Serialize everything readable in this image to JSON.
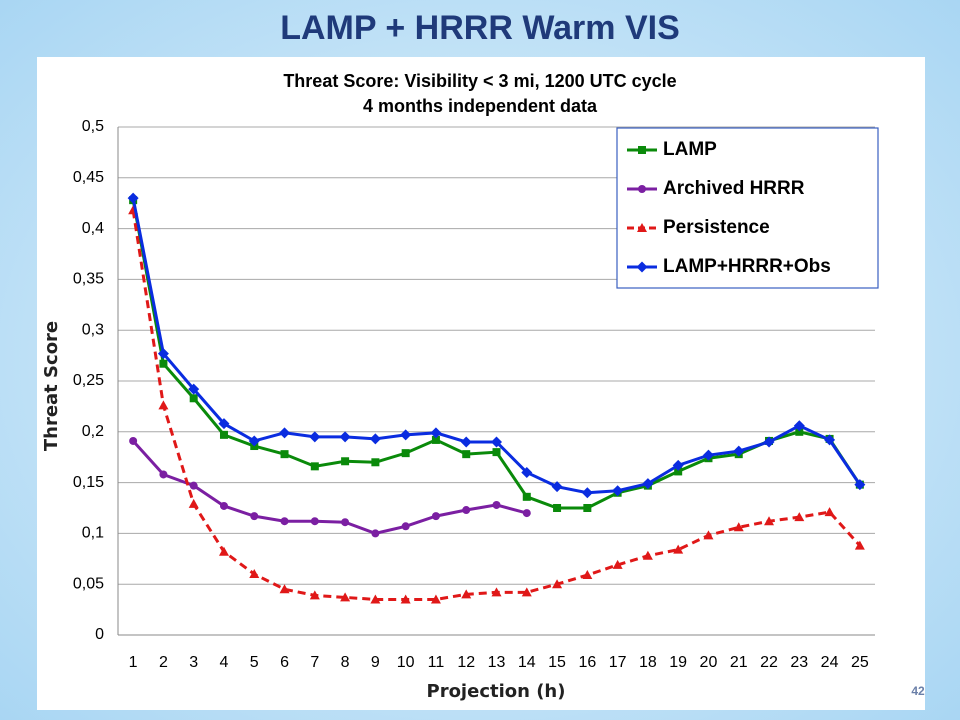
{
  "slide": {
    "title": "LAMP + HRRR Warm VIS",
    "page_number": "42"
  },
  "chart_data": {
    "type": "line",
    "title": "Threat Score: Visibility < 3 mi, 1200 UTC cycle",
    "subtitle": "4 months independent data",
    "x_label": "Projection (h)",
    "y_label": "Threat Score",
    "categories": [
      1,
      2,
      3,
      4,
      5,
      6,
      7,
      8,
      9,
      10,
      11,
      12,
      13,
      14,
      15,
      16,
      17,
      18,
      19,
      20,
      21,
      22,
      23,
      24,
      25
    ],
    "ylim": [
      0,
      0.5
    ],
    "yticks": [
      0,
      {
        "value": 0.05,
        "label": "0,05"
      },
      {
        "value": 0.1,
        "label": "0,1"
      },
      {
        "value": 0.15,
        "label": "0,15"
      },
      {
        "value": 0.2,
        "label": "0,2"
      },
      {
        "value": 0.25,
        "label": "0,25"
      },
      {
        "value": 0.3,
        "label": "0,3"
      },
      {
        "value": 0.35,
        "label": "0,35"
      },
      {
        "value": 0.4,
        "label": "0,4"
      },
      {
        "value": 0.45,
        "label": "0,45"
      },
      {
        "value": 0.5,
        "label": "0,5"
      }
    ],
    "grid": true,
    "legend": "upper right",
    "series": [
      {
        "name": "LAMP",
        "color": "#0a8a0a",
        "marker": "square",
        "dashed": false,
        "values": [
          0.428,
          0.267,
          0.233,
          0.197,
          0.186,
          0.178,
          0.166,
          0.171,
          0.17,
          0.179,
          0.192,
          0.178,
          0.18,
          0.136,
          0.125,
          0.125,
          0.14,
          0.147,
          0.161,
          0.174,
          0.178,
          0.191,
          0.2,
          0.193,
          0.148
        ]
      },
      {
        "name": "Archived HRRR",
        "color": "#7b1fa2",
        "marker": "circle",
        "dashed": false,
        "values": [
          0.191,
          0.158,
          0.147,
          0.127,
          0.117,
          0.112,
          0.112,
          0.111,
          0.1,
          0.107,
          0.117,
          0.123,
          0.128,
          0.12,
          null,
          null,
          null,
          null,
          null,
          null,
          null,
          null,
          null,
          null,
          null
        ]
      },
      {
        "name": "Persistence",
        "color": "#e01818",
        "marker": "triangle",
        "dashed": true,
        "values": [
          0.418,
          0.226,
          0.129,
          0.082,
          0.06,
          0.045,
          0.039,
          0.037,
          0.035,
          0.035,
          0.035,
          0.04,
          0.042,
          0.042,
          0.05,
          0.059,
          0.069,
          0.078,
          0.084,
          0.098,
          0.106,
          0.112,
          0.116,
          0.121,
          0.088
        ]
      },
      {
        "name": "LAMP+HRRR+Obs",
        "color": "#0a2ce0",
        "marker": "diamond",
        "dashed": false,
        "values": [
          0.43,
          0.277,
          0.242,
          0.208,
          0.191,
          0.199,
          0.195,
          0.195,
          0.193,
          0.197,
          0.199,
          0.19,
          0.19,
          0.16,
          0.146,
          0.14,
          0.142,
          0.149,
          0.167,
          0.177,
          0.181,
          0.19,
          0.206,
          0.192,
          0.148
        ]
      }
    ]
  }
}
